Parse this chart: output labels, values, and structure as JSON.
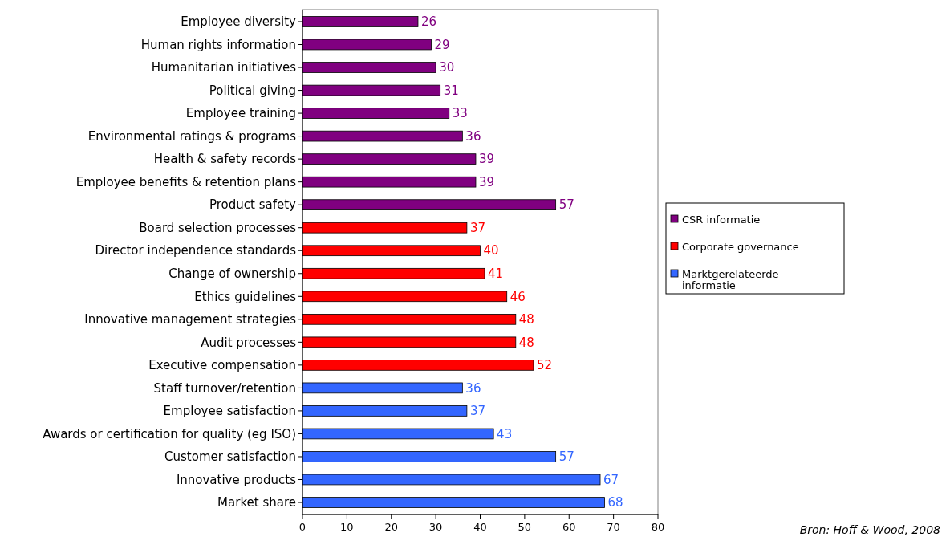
{
  "chart_data": {
    "type": "bar",
    "orientation": "horizontal",
    "categories": [
      "Employee diversity",
      "Human rights information",
      "Humanitarian initiatives",
      "Political giving",
      "Employee training",
      "Environmental ratings & programs",
      "Health & safety records",
      "Employee benefits & retention plans",
      "Product safety",
      "Board selection processes",
      "Director independence standards",
      "Change of ownership",
      "Ethics guidelines",
      "Innovative management strategies",
      "Audit processes",
      "Executive compensation",
      "Staff turnover/retention",
      "Employee satisfaction",
      "Awards or certification for quality (eg ISO)",
      "Customer satisfaction",
      "Innovative products",
      "Market share"
    ],
    "series": [
      {
        "name": "CSR informatie",
        "color": "#800080",
        "values": [
          26,
          29,
          30,
          31,
          33,
          36,
          39,
          39,
          57,
          null,
          null,
          null,
          null,
          null,
          null,
          null,
          null,
          null,
          null,
          null,
          null,
          null
        ]
      },
      {
        "name": "Corporate governance",
        "color": "#ff0000",
        "values": [
          null,
          null,
          null,
          null,
          null,
          null,
          null,
          null,
          null,
          37,
          40,
          41,
          46,
          48,
          48,
          52,
          null,
          null,
          null,
          null,
          null,
          null
        ]
      },
      {
        "name": "Marktgerelateerde informatie",
        "color": "#3366ff",
        "values": [
          null,
          null,
          null,
          null,
          null,
          null,
          null,
          null,
          null,
          null,
          null,
          null,
          null,
          null,
          null,
          null,
          36,
          37,
          43,
          57,
          67,
          68
        ]
      }
    ],
    "xlim": [
      0,
      80
    ],
    "xticks": [
      0,
      10,
      20,
      30,
      40,
      50,
      60,
      70,
      80
    ],
    "grid": false,
    "legend": "right",
    "data_labels": true,
    "annotations": [
      "Bron: Hoff & Wood, 2008"
    ]
  }
}
